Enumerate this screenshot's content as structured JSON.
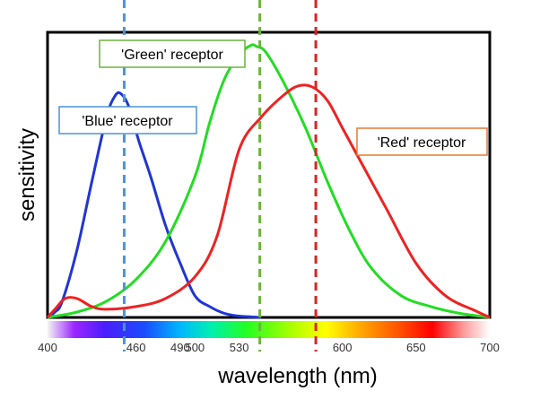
{
  "chart_data": {
    "type": "line",
    "title": "",
    "xlabel": "wavelength (nm)",
    "ylabel": "sensitivity",
    "xlim": [
      400,
      700
    ],
    "ylim": [
      0,
      1
    ],
    "grid": false,
    "x_tick_labels": [
      {
        "value": 400,
        "label": "400"
      },
      {
        "value": 460,
        "label": "460"
      },
      {
        "value": 490,
        "label": "490"
      },
      {
        "value": 500,
        "label": "500"
      },
      {
        "value": 530,
        "label": "530"
      },
      {
        "value": 600,
        "label": "600"
      },
      {
        "value": 650,
        "label": "650"
      },
      {
        "value": 700,
        "label": "700"
      }
    ],
    "reference_lines": [
      {
        "x": 452,
        "color": "#4f94d4"
      },
      {
        "x": 544,
        "color": "#6bb33c"
      },
      {
        "x": 582,
        "color": "#dd2222"
      }
    ],
    "series": [
      {
        "name": "'Blue' receptor",
        "color": "#1f35d6",
        "x": [
          400,
          405,
          410,
          420,
          430,
          440,
          446,
          450,
          455,
          462,
          470,
          480,
          490,
          500,
          510,
          520,
          530,
          545
        ],
        "y": [
          0,
          0.02,
          0.06,
          0.25,
          0.5,
          0.74,
          0.82,
          0.825,
          0.78,
          0.65,
          0.52,
          0.34,
          0.2,
          0.08,
          0.04,
          0.015,
          0.005,
          0
        ]
      },
      {
        "name": "'Green' receptor",
        "color": "#22dd22",
        "x": [
          400,
          420,
          440,
          460,
          480,
          500,
          510,
          520,
          530,
          538,
          542,
          548,
          560,
          575,
          590,
          605,
          620,
          640,
          660,
          680,
          700
        ],
        "y": [
          0,
          0.02,
          0.06,
          0.14,
          0.28,
          0.52,
          0.72,
          0.88,
          0.97,
          1.005,
          1.0,
          0.98,
          0.87,
          0.7,
          0.5,
          0.32,
          0.18,
          0.08,
          0.04,
          0.015,
          0
        ]
      },
      {
        "name": "'Red' receptor",
        "color": "#ee2222",
        "x": [
          400,
          405,
          412,
          420,
          430,
          440,
          460,
          480,
          500,
          515,
          530,
          545,
          560,
          570,
          580,
          590,
          600,
          615,
          630,
          650,
          670,
          690,
          700
        ],
        "y": [
          0,
          0.03,
          0.07,
          0.07,
          0.04,
          0.03,
          0.04,
          0.07,
          0.15,
          0.3,
          0.62,
          0.74,
          0.82,
          0.855,
          0.85,
          0.8,
          0.7,
          0.55,
          0.4,
          0.2,
          0.08,
          0.025,
          0
        ]
      }
    ],
    "annotations": [
      {
        "text": "'Green' receptor",
        "border_color": "#6bb33c"
      },
      {
        "text": "'Blue' receptor",
        "border_color": "#4f94d4"
      },
      {
        "text": "'Red' receptor",
        "border_color": "#e87830"
      }
    ]
  }
}
